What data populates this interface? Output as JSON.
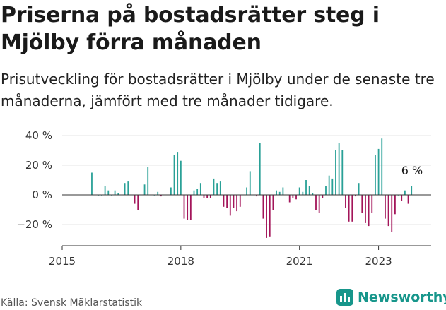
{
  "title": "Priserna på bostadsrätter steg i Mjölby förra månaden",
  "subtitle": "Prisutveckling för bostadsrätter i Mjölby under de senaste tre månaderna, jämfört med tre månader tidigare.",
  "source": "Källa: Svensk Mäklarstatistik",
  "brand": "Newsworthy",
  "colors": {
    "positive": "#2aa197",
    "negative": "#a3155a",
    "brand": "#17968b",
    "grid": "#e5e5e5",
    "axis": "#333333"
  },
  "chart_data": {
    "type": "bar",
    "xlabel": "",
    "ylabel": "",
    "y_ticks": [
      40,
      20,
      0,
      -20
    ],
    "y_tick_labels": [
      "40 %",
      "20 %",
      "0 %",
      "−20 %"
    ],
    "ylim": [
      -30,
      45
    ],
    "x_ticks": [
      "2015",
      "2018",
      "2021",
      "2023"
    ],
    "grid": true,
    "annotation": "6 %",
    "series": [
      {
        "values": [
          {
            "x": "2015-10",
            "y": 15
          },
          {
            "x": "2015-12",
            "y": 0
          },
          {
            "x": "2016-01",
            "y": 0
          },
          {
            "x": "2016-02",
            "y": 6
          },
          {
            "x": "2016-03",
            "y": 3
          },
          {
            "x": "2016-04",
            "y": 0
          },
          {
            "x": "2016-05",
            "y": 3
          },
          {
            "x": "2016-06",
            "y": 1
          },
          {
            "x": "2016-08",
            "y": 8
          },
          {
            "x": "2016-09",
            "y": 9
          },
          {
            "x": "2016-11",
            "y": -6
          },
          {
            "x": "2016-12",
            "y": -10
          },
          {
            "x": "2017-02",
            "y": 7
          },
          {
            "x": "2017-03",
            "y": 19
          },
          {
            "x": "2017-05",
            "y": 0
          },
          {
            "x": "2017-06",
            "y": 2
          },
          {
            "x": "2017-07",
            "y": -1
          },
          {
            "x": "2017-10",
            "y": 5
          },
          {
            "x": "2017-11",
            "y": 27
          },
          {
            "x": "2017-12",
            "y": 29
          },
          {
            "x": "2018-01",
            "y": 23
          },
          {
            "x": "2018-02",
            "y": -16
          },
          {
            "x": "2018-03",
            "y": -17
          },
          {
            "x": "2018-04",
            "y": -17
          },
          {
            "x": "2018-05",
            "y": 3
          },
          {
            "x": "2018-06",
            "y": 4
          },
          {
            "x": "2018-07",
            "y": 8
          },
          {
            "x": "2018-08",
            "y": -2
          },
          {
            "x": "2018-09",
            "y": -2
          },
          {
            "x": "2018-10",
            "y": -2
          },
          {
            "x": "2018-11",
            "y": 11
          },
          {
            "x": "2018-12",
            "y": 8
          },
          {
            "x": "2019-01",
            "y": 9
          },
          {
            "x": "2019-02",
            "y": -8
          },
          {
            "x": "2019-03",
            "y": -9
          },
          {
            "x": "2019-04",
            "y": -14
          },
          {
            "x": "2019-05",
            "y": -9
          },
          {
            "x": "2019-06",
            "y": -11
          },
          {
            "x": "2019-07",
            "y": -8
          },
          {
            "x": "2019-09",
            "y": 5
          },
          {
            "x": "2019-10",
            "y": 16
          },
          {
            "x": "2019-12",
            "y": -1
          },
          {
            "x": "2020-01",
            "y": 35
          },
          {
            "x": "2020-02",
            "y": -16
          },
          {
            "x": "2020-03",
            "y": -29
          },
          {
            "x": "2020-04",
            "y": -28
          },
          {
            "x": "2020-05",
            "y": -10
          },
          {
            "x": "2020-06",
            "y": 3
          },
          {
            "x": "2020-07",
            "y": 2
          },
          {
            "x": "2020-08",
            "y": 5
          },
          {
            "x": "2020-10",
            "y": -5
          },
          {
            "x": "2020-11",
            "y": -2
          },
          {
            "x": "2020-12",
            "y": -3
          },
          {
            "x": "2021-01",
            "y": 5
          },
          {
            "x": "2021-02",
            "y": 2
          },
          {
            "x": "2021-03",
            "y": 10
          },
          {
            "x": "2021-04",
            "y": 6
          },
          {
            "x": "2021-05",
            "y": 1
          },
          {
            "x": "2021-06",
            "y": -10
          },
          {
            "x": "2021-07",
            "y": -12
          },
          {
            "x": "2021-08",
            "y": -2
          },
          {
            "x": "2021-09",
            "y": 6
          },
          {
            "x": "2021-10",
            "y": 13
          },
          {
            "x": "2021-11",
            "y": 11
          },
          {
            "x": "2021-12",
            "y": 30
          },
          {
            "x": "2022-01",
            "y": 35
          },
          {
            "x": "2022-02",
            "y": 30
          },
          {
            "x": "2022-03",
            "y": -9
          },
          {
            "x": "2022-04",
            "y": -18
          },
          {
            "x": "2022-05",
            "y": -18
          },
          {
            "x": "2022-06",
            "y": -1
          },
          {
            "x": "2022-07",
            "y": 8
          },
          {
            "x": "2022-08",
            "y": -12
          },
          {
            "x": "2022-09",
            "y": -19
          },
          {
            "x": "2022-10",
            "y": -21
          },
          {
            "x": "2022-11",
            "y": -12
          },
          {
            "x": "2022-12",
            "y": 27
          },
          {
            "x": "2023-01",
            "y": 31
          },
          {
            "x": "2023-02",
            "y": 38
          },
          {
            "x": "2023-03",
            "y": -16
          },
          {
            "x": "2023-04",
            "y": -21
          },
          {
            "x": "2023-05",
            "y": -25
          },
          {
            "x": "2023-06",
            "y": -13
          },
          {
            "x": "2023-07",
            "y": 0
          },
          {
            "x": "2023-08",
            "y": -4
          },
          {
            "x": "2023-09",
            "y": 3
          },
          {
            "x": "2023-10",
            "y": -6
          },
          {
            "x": "2023-11",
            "y": 6
          }
        ]
      }
    ]
  }
}
